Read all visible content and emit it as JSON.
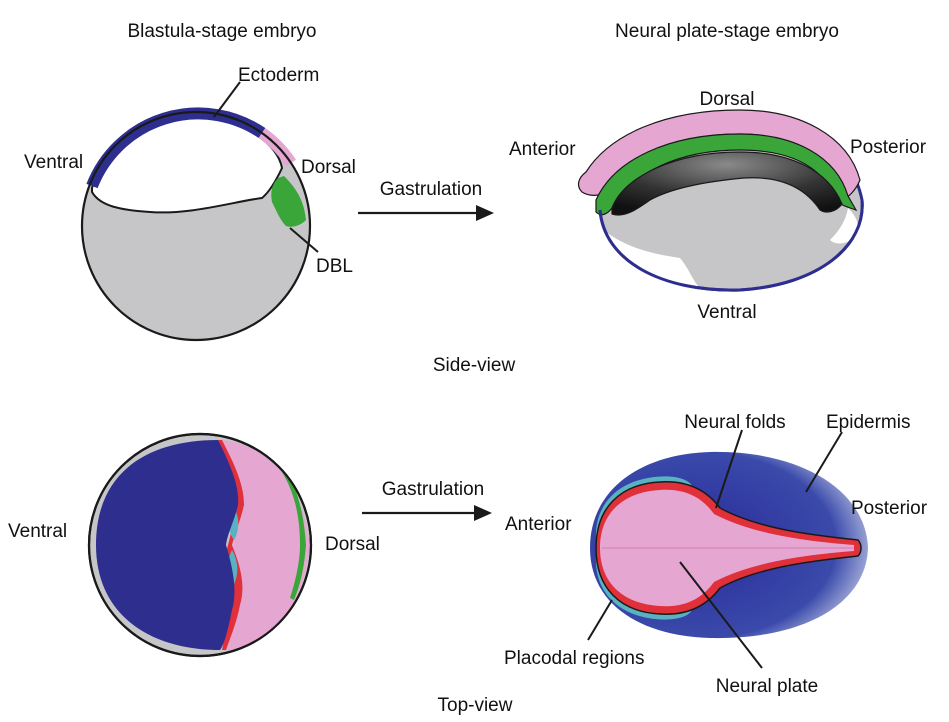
{
  "colors": {
    "ectoderm_blue": "#2e2e8f",
    "pink": "#e6a6d2",
    "green": "#3aa63a",
    "red": "#e0303a",
    "teal": "#58b2c0",
    "grey": "#c6c6c8",
    "outline": "#1a1a1a"
  },
  "side_view": {
    "caption": "Side-view",
    "blastula": {
      "title": "Blastula-stage embryo",
      "label_ectoderm": "Ectoderm",
      "label_ventral": "Ventral",
      "label_dorsal": "Dorsal",
      "label_dbl": "DBL"
    },
    "arrow_label": "Gastrulation",
    "neural_plate": {
      "title": "Neural plate-stage embryo",
      "label_dorsal": "Dorsal",
      "label_anterior": "Anterior",
      "label_posterior": "Posterior",
      "label_ventral": "Ventral"
    }
  },
  "top_view": {
    "caption": "Top-view",
    "blastula": {
      "label_ventral": "Ventral",
      "label_dorsal": "Dorsal"
    },
    "arrow_label": "Gastrulation",
    "neurula": {
      "label_neural_folds": "Neural folds",
      "label_epidermis": "Epidermis",
      "label_anterior": "Anterior",
      "label_posterior": "Posterior",
      "label_placodal": "Placodal regions",
      "label_neural_plate": "Neural plate"
    }
  }
}
